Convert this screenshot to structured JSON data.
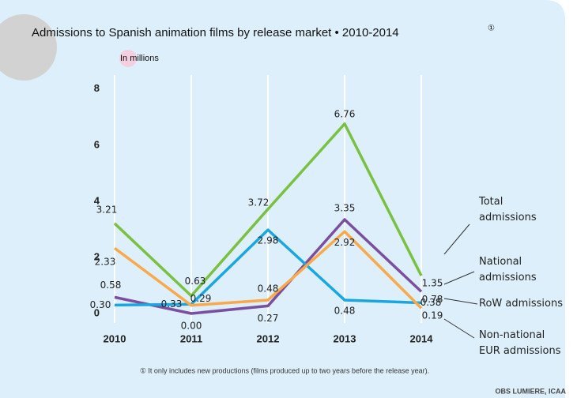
{
  "chart_data": {
    "type": "line",
    "title": "Admissions to Spanish animation films by release market • 2010-2014",
    "title_marker": "①",
    "unit_label": "In millions",
    "footnote": "① It only includes new productions (films produced up to two years before the release year).",
    "source": "OBS LUMIERE, ICAA",
    "categories": [
      "2010",
      "2011",
      "2012",
      "2013",
      "2014"
    ],
    "ylim": [
      0,
      8.5
    ],
    "yticks": [
      0,
      2,
      4,
      6,
      8
    ],
    "grid": true,
    "series": [
      {
        "name": "Total admissions",
        "color": "#7ac143",
        "values": [
          3.21,
          0.63,
          3.72,
          6.76,
          1.35
        ],
        "value_labels": [
          "3.21",
          "0.63",
          "3.72",
          "6.76",
          "1.35"
        ]
      },
      {
        "name": "National admissions",
        "color": "#7b4fa0",
        "values": [
          0.58,
          0,
          0.27,
          3.35,
          0.78
        ],
        "value_labels": [
          "0.58",
          "0.00",
          "0.27",
          "3.35",
          "0.78"
        ]
      },
      {
        "name": "RoW admissions",
        "color": "#1aa7e0",
        "values": [
          0.3,
          0.33,
          2.98,
          0.48,
          0.38
        ],
        "value_labels": [
          "0.30",
          "0.33",
          "2.98",
          "0.48",
          "0.38"
        ]
      },
      {
        "name": "Non-national EUR admissions",
        "color": "#f9a94a",
        "values": [
          2.33,
          0.29,
          0.48,
          2.92,
          0.19
        ],
        "value_labels": [
          "2.33",
          "0.29",
          "0.48",
          "2.92",
          "0.19"
        ]
      }
    ]
  }
}
